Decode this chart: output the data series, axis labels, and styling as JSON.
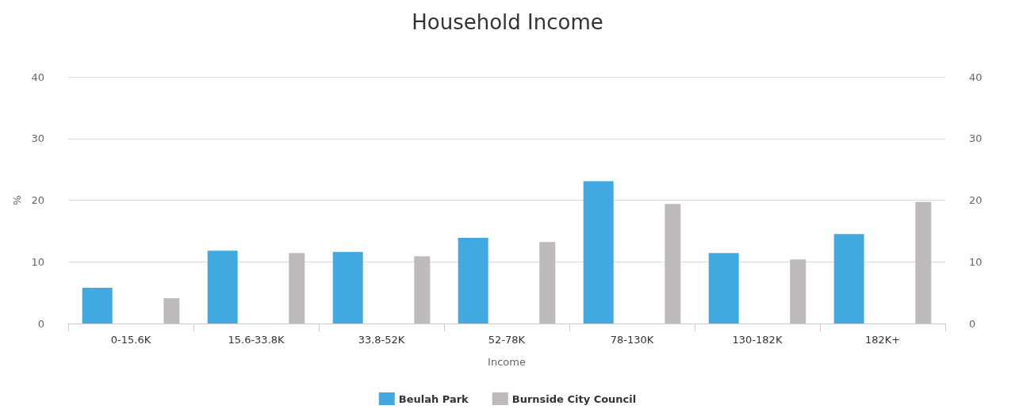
{
  "chart_data": {
    "type": "bar",
    "title": "Household Income",
    "xlabel": "Income",
    "ylabel": "%",
    "categories": [
      "0-15.6K",
      "15.6-33.8K",
      "33.8-52K",
      "52-78K",
      "78-130K",
      "130-182K",
      "182K+"
    ],
    "series": [
      {
        "name": "Beulah Park",
        "color": "#42a9e0",
        "values": [
          5.8,
          11.8,
          11.6,
          13.9,
          23.1,
          11.4,
          14.5
        ]
      },
      {
        "name": "Burnside City Council",
        "color": "#bfbaba",
        "values": [
          4.1,
          11.4,
          10.9,
          13.2,
          19.4,
          10.4,
          19.7
        ]
      }
    ],
    "ylim": [
      0,
      40
    ],
    "yticks": [
      0,
      10,
      20,
      30,
      40
    ],
    "y2lim": [
      0,
      40
    ],
    "y2ticks": [
      0,
      10,
      20,
      30,
      40
    ],
    "grid": "y",
    "legend": "bottom"
  }
}
